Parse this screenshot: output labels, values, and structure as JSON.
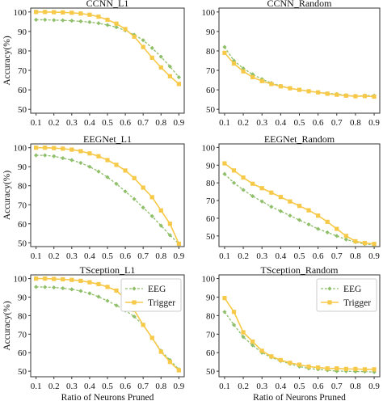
{
  "colors": {
    "eeg": "#8fbf6a",
    "trigger": "#f7c948",
    "axis": "#333333"
  },
  "shared": {
    "xlabel": "Ratio of Neurons Pruned",
    "ylabel": "Accuracy(%)"
  },
  "chart_data": [
    {
      "type": "line",
      "title": "CCNN_L1",
      "x": [
        0.1,
        0.15,
        0.2,
        0.25,
        0.3,
        0.35,
        0.4,
        0.45,
        0.5,
        0.55,
        0.6,
        0.65,
        0.7,
        0.75,
        0.8,
        0.85,
        0.9
      ],
      "xticks": [
        0.1,
        0.2,
        0.3,
        0.4,
        0.5,
        0.6,
        0.7,
        0.8,
        0.9
      ],
      "yticks": [
        50,
        60,
        70,
        80,
        90,
        100
      ],
      "ylim": [
        48,
        102
      ],
      "ylabel": "Accuracy(%)",
      "xlabel": "",
      "legend": false,
      "series": [
        {
          "name": "EEG",
          "values": [
            96,
            96,
            95.8,
            95.7,
            95.5,
            95.2,
            94.8,
            94.2,
            93.3,
            92.2,
            90.5,
            88.3,
            85.5,
            81.5,
            77,
            72,
            66.5
          ]
        },
        {
          "name": "Trigger",
          "values": [
            100,
            100,
            99.9,
            99.8,
            99.6,
            99.2,
            98.6,
            97.6,
            96,
            94,
            91.2,
            87.3,
            82,
            76.5,
            71.5,
            67,
            63
          ]
        }
      ]
    },
    {
      "type": "line",
      "title": "CCNN_Random",
      "x": [
        0.1,
        0.15,
        0.2,
        0.25,
        0.3,
        0.35,
        0.4,
        0.45,
        0.5,
        0.55,
        0.6,
        0.65,
        0.7,
        0.75,
        0.8,
        0.85,
        0.9
      ],
      "xticks": [
        0.1,
        0.2,
        0.3,
        0.4,
        0.5,
        0.6,
        0.7,
        0.8,
        0.9
      ],
      "yticks": [
        50,
        60,
        70,
        80,
        90,
        100
      ],
      "ylim": [
        48,
        102
      ],
      "ylabel": "",
      "xlabel": "",
      "legend": false,
      "series": [
        {
          "name": "EEG",
          "values": [
            82,
            75,
            71,
            68,
            65.5,
            63.5,
            62,
            60.8,
            60,
            59.3,
            58.7,
            58.2,
            57.8,
            57.2,
            56.8,
            57,
            57
          ]
        },
        {
          "name": "Trigger",
          "values": [
            79,
            73.5,
            69.5,
            66.5,
            64.5,
            63,
            61.8,
            60.8,
            60,
            59.3,
            58.7,
            58,
            57.5,
            57,
            56.7,
            56.8,
            56.5
          ]
        }
      ]
    },
    {
      "type": "line",
      "title": "EEGNet_L1",
      "x": [
        0.1,
        0.15,
        0.2,
        0.25,
        0.3,
        0.35,
        0.4,
        0.45,
        0.5,
        0.55,
        0.6,
        0.65,
        0.7,
        0.75,
        0.8,
        0.85,
        0.9
      ],
      "xticks": [
        0.1,
        0.2,
        0.3,
        0.4,
        0.5,
        0.6,
        0.7,
        0.8,
        0.9
      ],
      "yticks": [
        50,
        60,
        70,
        80,
        90,
        100
      ],
      "ylim": [
        48,
        102
      ],
      "ylabel": "Accuracy(%)",
      "xlabel": "",
      "legend": false,
      "series": [
        {
          "name": "EEG",
          "values": [
            96,
            96,
            95.5,
            94.5,
            93.5,
            92,
            90,
            87.5,
            84.5,
            81,
            77,
            73,
            68.5,
            64,
            59,
            54,
            49.5
          ]
        },
        {
          "name": "Trigger",
          "values": [
            100,
            100,
            99.8,
            99.5,
            99,
            98.2,
            97,
            95.5,
            93.5,
            91,
            88,
            84,
            79,
            74,
            67,
            60,
            49.5
          ]
        }
      ]
    },
    {
      "type": "line",
      "title": "EEGNet_Random",
      "x": [
        0.1,
        0.15,
        0.2,
        0.25,
        0.3,
        0.35,
        0.4,
        0.45,
        0.5,
        0.55,
        0.6,
        0.65,
        0.7,
        0.75,
        0.8,
        0.85,
        0.9
      ],
      "xticks": [
        0.1,
        0.2,
        0.3,
        0.4,
        0.5,
        0.6,
        0.7,
        0.8,
        0.9
      ],
      "yticks": [
        50,
        60,
        70,
        80,
        90,
        100
      ],
      "ylim": [
        44,
        102
      ],
      "ylabel": "",
      "xlabel": "",
      "legend": false,
      "series": [
        {
          "name": "EEG",
          "values": [
            85,
            80,
            76,
            72.5,
            69.5,
            66.5,
            64,
            61.5,
            59,
            56.5,
            54,
            52,
            50,
            48,
            46.5,
            45.5,
            45
          ]
        },
        {
          "name": "Trigger",
          "values": [
            91,
            87,
            83,
            79.5,
            77,
            74.5,
            72,
            69.5,
            67,
            64.5,
            61.5,
            58,
            54,
            50,
            47,
            46,
            45.5
          ]
        }
      ]
    },
    {
      "type": "line",
      "title": "TSception_L1",
      "x": [
        0.1,
        0.15,
        0.2,
        0.25,
        0.3,
        0.35,
        0.4,
        0.45,
        0.5,
        0.55,
        0.6,
        0.65,
        0.7,
        0.75,
        0.8,
        0.85,
        0.9
      ],
      "xticks": [
        0.1,
        0.2,
        0.3,
        0.4,
        0.5,
        0.6,
        0.7,
        0.8,
        0.9
      ],
      "yticks": [
        50,
        60,
        70,
        80,
        90,
        100
      ],
      "ylim": [
        47,
        102
      ],
      "ylabel": "Accuracy(%)",
      "xlabel": "Ratio of Neurons Pruned",
      "legend": true,
      "legend_position": "top-right",
      "series": [
        {
          "name": "EEG",
          "values": [
            95.5,
            95.4,
            95.2,
            94.8,
            94.2,
            93.3,
            92,
            90.2,
            88,
            85.5,
            82.8,
            79.5,
            75,
            68,
            61,
            56,
            51
          ]
        },
        {
          "name": "Trigger",
          "values": [
            100,
            100,
            99.8,
            99.6,
            99.3,
            98.8,
            98,
            97,
            95.5,
            93.5,
            89,
            83,
            75,
            68,
            60.5,
            55,
            50.5
          ]
        }
      ]
    },
    {
      "type": "line",
      "title": "TSception_Random",
      "x": [
        0.1,
        0.15,
        0.2,
        0.25,
        0.3,
        0.35,
        0.4,
        0.45,
        0.5,
        0.55,
        0.6,
        0.65,
        0.7,
        0.75,
        0.8,
        0.85,
        0.9
      ],
      "xticks": [
        0.1,
        0.2,
        0.3,
        0.4,
        0.5,
        0.6,
        0.7,
        0.8,
        0.9
      ],
      "yticks": [
        50,
        60,
        70,
        80,
        90,
        100
      ],
      "ylim": [
        47,
        102
      ],
      "ylabel": "",
      "xlabel": "Ratio of Neurons Pruned",
      "legend": true,
      "legend_position": "top-right",
      "series": [
        {
          "name": "EEG",
          "values": [
            82,
            75,
            68.5,
            64,
            60,
            57.5,
            55.5,
            54,
            52.5,
            51.5,
            51,
            50.5,
            50,
            50,
            49.8,
            49.8,
            49.5
          ]
        },
        {
          "name": "Trigger",
          "values": [
            89.5,
            82,
            71,
            66,
            61,
            58,
            56,
            54.5,
            53.5,
            52.5,
            52,
            51.5,
            51.5,
            51.2,
            51.2,
            51,
            51
          ]
        }
      ]
    }
  ]
}
